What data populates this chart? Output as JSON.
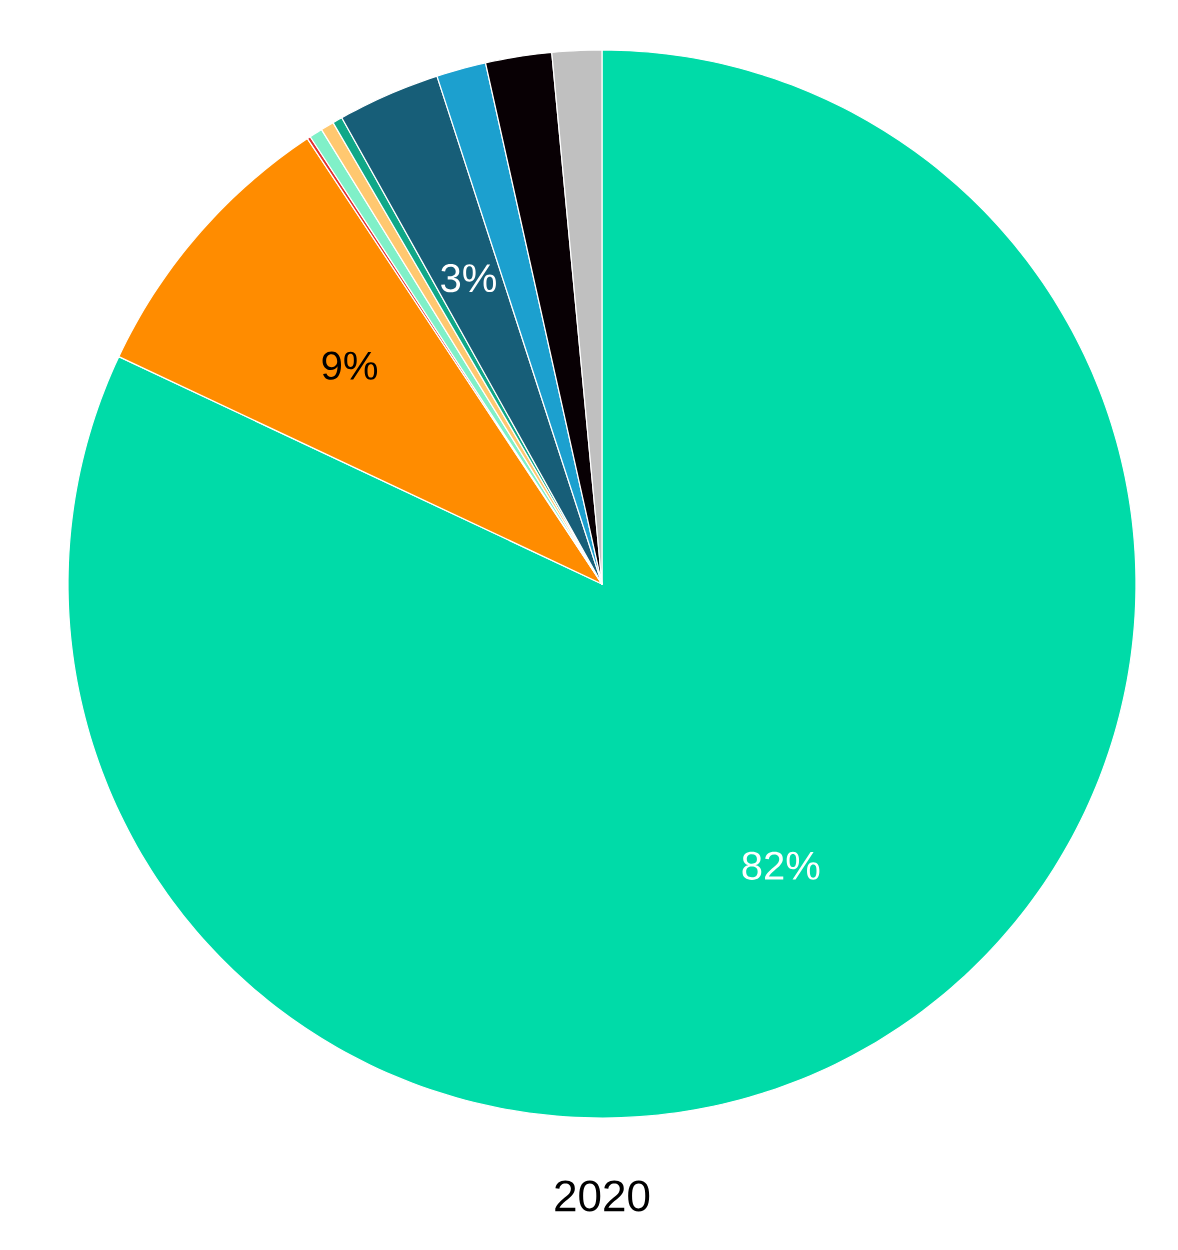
{
  "chart_data": {
    "type": "pie",
    "title": "2020",
    "categories": [
      null,
      null,
      null,
      null,
      null,
      null,
      null,
      null,
      null,
      null
    ],
    "values": [
      82,
      8.7,
      0.1,
      0.4,
      0.4,
      0.3,
      3.1,
      1.5,
      2,
      1.5
    ],
    "colors": [
      "#00dba8",
      "#ff8c00",
      "#e03030",
      "#80f0c8",
      "#ffc870",
      "#10a888",
      "#175e78",
      "#1ca0cf",
      "#080004",
      "#c0c0c0"
    ],
    "value_labels": [
      "82%",
      "9%",
      null,
      null,
      null,
      null,
      "3%",
      null,
      null,
      null
    ]
  }
}
